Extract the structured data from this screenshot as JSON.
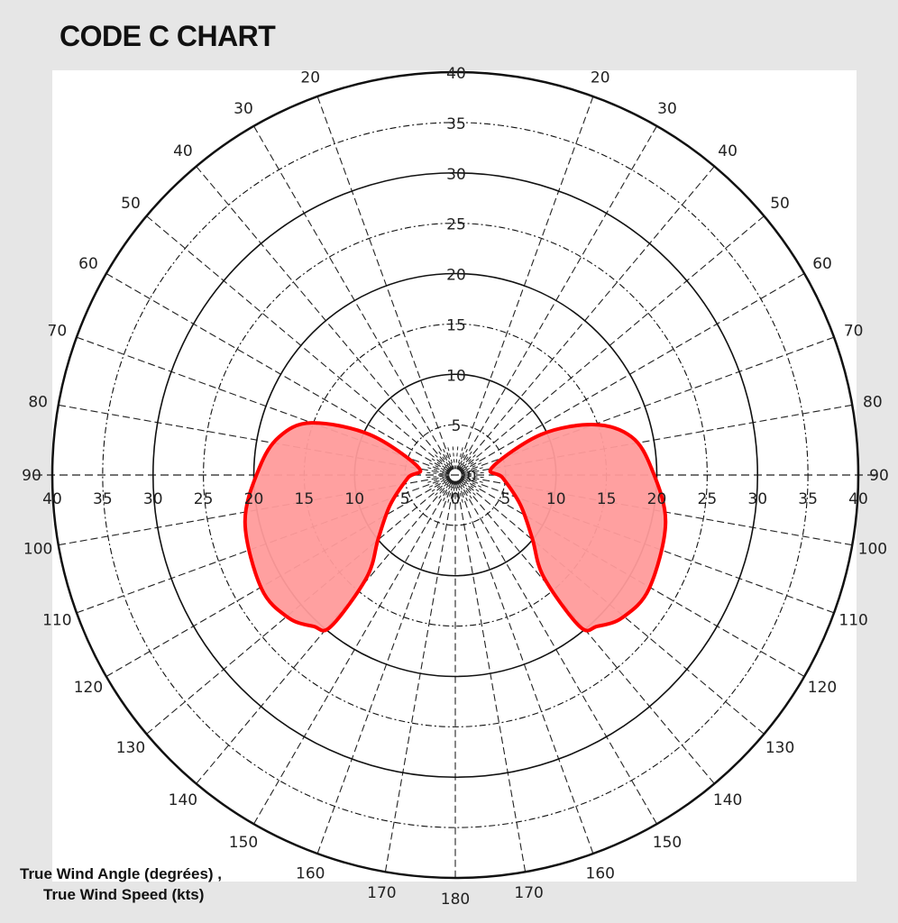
{
  "title": "CODE C CHART",
  "axis_label_line1": "True Wind Angle (degrées) ,",
  "axis_label_line2": "True Wind Speed (kts)",
  "chart_data": {
    "type": "polar-area",
    "title": "CODE C CHART",
    "angle_label": "True Wind Angle (degrées)",
    "radius_label": "True Wind Speed (kts)",
    "radius_range": [
      0,
      40
    ],
    "radius_ticks": [
      0,
      5,
      10,
      15,
      20,
      25,
      30,
      35,
      40
    ],
    "angle_ticks": [
      20,
      30,
      40,
      50,
      60,
      70,
      80,
      90,
      100,
      110,
      120,
      130,
      140,
      150,
      160,
      170,
      180
    ],
    "grid": true,
    "fill_color": "#ff9b9b",
    "line_color": "#ff0000",
    "series": [
      {
        "side": "starboard",
        "points": [
          [
            78.7,
            3.7
          ],
          [
            64.7,
            9.4
          ],
          [
            70.1,
            14.7
          ],
          [
            77.8,
            17.9
          ],
          [
            88.2,
            19.5
          ],
          [
            102.8,
            21.4
          ],
          [
            120.4,
            22.3
          ],
          [
            130.5,
            21.8
          ],
          [
            136.8,
            20.6
          ],
          [
            140.6,
            19.5
          ],
          [
            139.1,
            13.4
          ],
          [
            129.5,
            9.9
          ],
          [
            114.6,
            7.1
          ],
          [
            93.3,
            4.7
          ]
        ]
      },
      {
        "side": "port",
        "points": [
          [
            78.7,
            3.7
          ],
          [
            64.7,
            9.4
          ],
          [
            70.1,
            15.2
          ],
          [
            77.8,
            17.9
          ],
          [
            88.2,
            19.5
          ],
          [
            102.8,
            21.4
          ],
          [
            120.4,
            22.3
          ],
          [
            130.5,
            21.8
          ],
          [
            136.8,
            20.6
          ],
          [
            140.6,
            19.5
          ],
          [
            139.1,
            13.4
          ],
          [
            129.5,
            9.9
          ],
          [
            114.6,
            7.1
          ],
          [
            93.3,
            4.7
          ]
        ]
      }
    ]
  }
}
